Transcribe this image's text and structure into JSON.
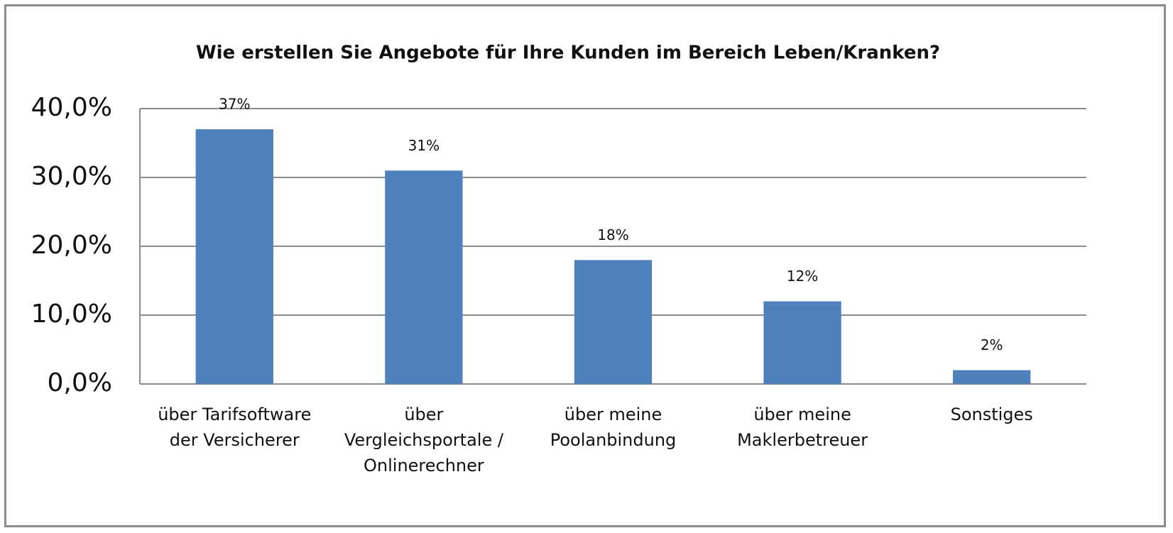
{
  "chart_data": {
    "type": "bar",
    "title": "Wie erstellen Sie Angebote für Ihre Kunden im Bereich Leben/Kranken?",
    "categories": [
      "über Tarifsoftware\nder Versicherer",
      "über\nVergleichsportale /\nOnlinerechner",
      "über meine\nPoolanbindung",
      "über meine\nMaklerbetreuer",
      "Sonstiges"
    ],
    "values": [
      37,
      31,
      18,
      12,
      2
    ],
    "value_labels": [
      "37%",
      "31%",
      "18%",
      "12%",
      "2%"
    ],
    "color": "#4f81bd",
    "ylim": [
      0,
      40
    ],
    "yticks": [
      {
        "value": 0,
        "label": "0,0%"
      },
      {
        "value": 10,
        "label": "10,0%"
      },
      {
        "value": 20,
        "label": "20,0%"
      },
      {
        "value": 30,
        "label": "30,0%"
      },
      {
        "value": 40,
        "label": "40,0%"
      }
    ],
    "grid": true
  }
}
